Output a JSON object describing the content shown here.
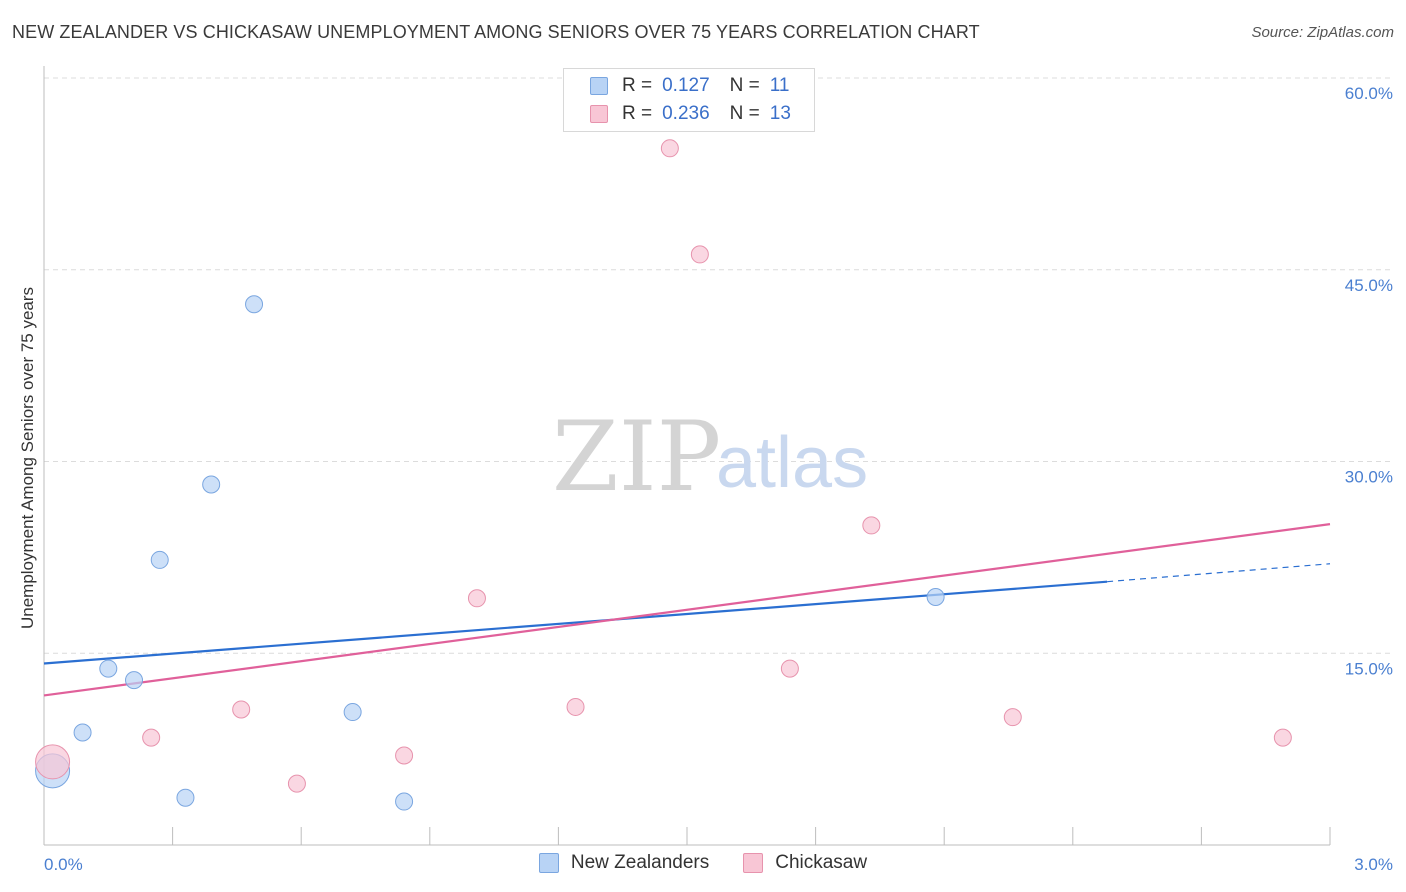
{
  "header": {
    "title": "NEW ZEALANDER VS CHICKASAW UNEMPLOYMENT AMONG SENIORS OVER 75 YEARS CORRELATION CHART",
    "source": "Source: ZipAtlas.com"
  },
  "watermark": {
    "zip": "ZIP",
    "atlas": "atlas"
  },
  "legend": {
    "rows": [
      {
        "r_label": "R =",
        "r_value": "0.127",
        "n_label": "N =",
        "n_value": "11"
      },
      {
        "r_label": "R =",
        "r_value": "0.236",
        "n_label": "N =",
        "n_value": "13"
      }
    ]
  },
  "bottom_legend": {
    "series_a": "New Zealanders",
    "series_b": "Chickasaw"
  },
  "colors": {
    "blue_fill": "#b8d3f5",
    "blue_stroke": "#7aa6e0",
    "blue_line": "#2b6fd1",
    "pink_fill": "#f8c6d5",
    "pink_stroke": "#e793ad",
    "pink_line": "#e0609a"
  },
  "chart_data": {
    "type": "scatter",
    "title": "NEW ZEALANDER VS CHICKASAW UNEMPLOYMENT AMONG SENIORS OVER 75 YEARS CORRELATION CHART",
    "xlabel": "",
    "ylabel": "Unemployment Among Seniors over 75 years",
    "xlim": [
      0,
      3.0
    ],
    "ylim": [
      0,
      60
    ],
    "x_tick_labels": [
      "0.0%",
      "3.0%"
    ],
    "y_ticks": [
      15,
      30,
      45,
      60
    ],
    "y_tick_labels": [
      "15.0%",
      "30.0%",
      "45.0%",
      "60.0%"
    ],
    "grid": true,
    "series": [
      {
        "name": "New Zealanders",
        "points": [
          {
            "x": 0.02,
            "y": 5.8,
            "size": "large"
          },
          {
            "x": 0.09,
            "y": 8.8
          },
          {
            "x": 0.15,
            "y": 13.8
          },
          {
            "x": 0.21,
            "y": 12.9
          },
          {
            "x": 0.27,
            "y": 22.3
          },
          {
            "x": 0.33,
            "y": 3.7
          },
          {
            "x": 0.39,
            "y": 28.2
          },
          {
            "x": 0.49,
            "y": 42.3
          },
          {
            "x": 0.72,
            "y": 10.4
          },
          {
            "x": 0.84,
            "y": 3.4
          },
          {
            "x": 2.08,
            "y": 19.4
          }
        ],
        "trend": {
          "x0": 0.0,
          "y0": 14.2,
          "x1": 2.48,
          "y1": 20.6,
          "dashed_to_x": 3.0,
          "dashed_to_y": 22.0
        }
      },
      {
        "name": "Chickasaw",
        "points": [
          {
            "x": 0.02,
            "y": 6.5,
            "size": "large"
          },
          {
            "x": 0.25,
            "y": 8.4
          },
          {
            "x": 0.46,
            "y": 10.6
          },
          {
            "x": 0.59,
            "y": 4.8
          },
          {
            "x": 0.84,
            "y": 7.0
          },
          {
            "x": 1.01,
            "y": 19.3
          },
          {
            "x": 1.24,
            "y": 10.8
          },
          {
            "x": 1.46,
            "y": 54.5
          },
          {
            "x": 1.53,
            "y": 46.2
          },
          {
            "x": 1.74,
            "y": 13.8
          },
          {
            "x": 1.93,
            "y": 25.0
          },
          {
            "x": 2.26,
            "y": 10.0
          },
          {
            "x": 2.89,
            "y": 8.4
          }
        ],
        "trend": {
          "x0": 0.0,
          "y0": 11.7,
          "x1": 3.0,
          "y1": 25.1
        }
      }
    ]
  }
}
